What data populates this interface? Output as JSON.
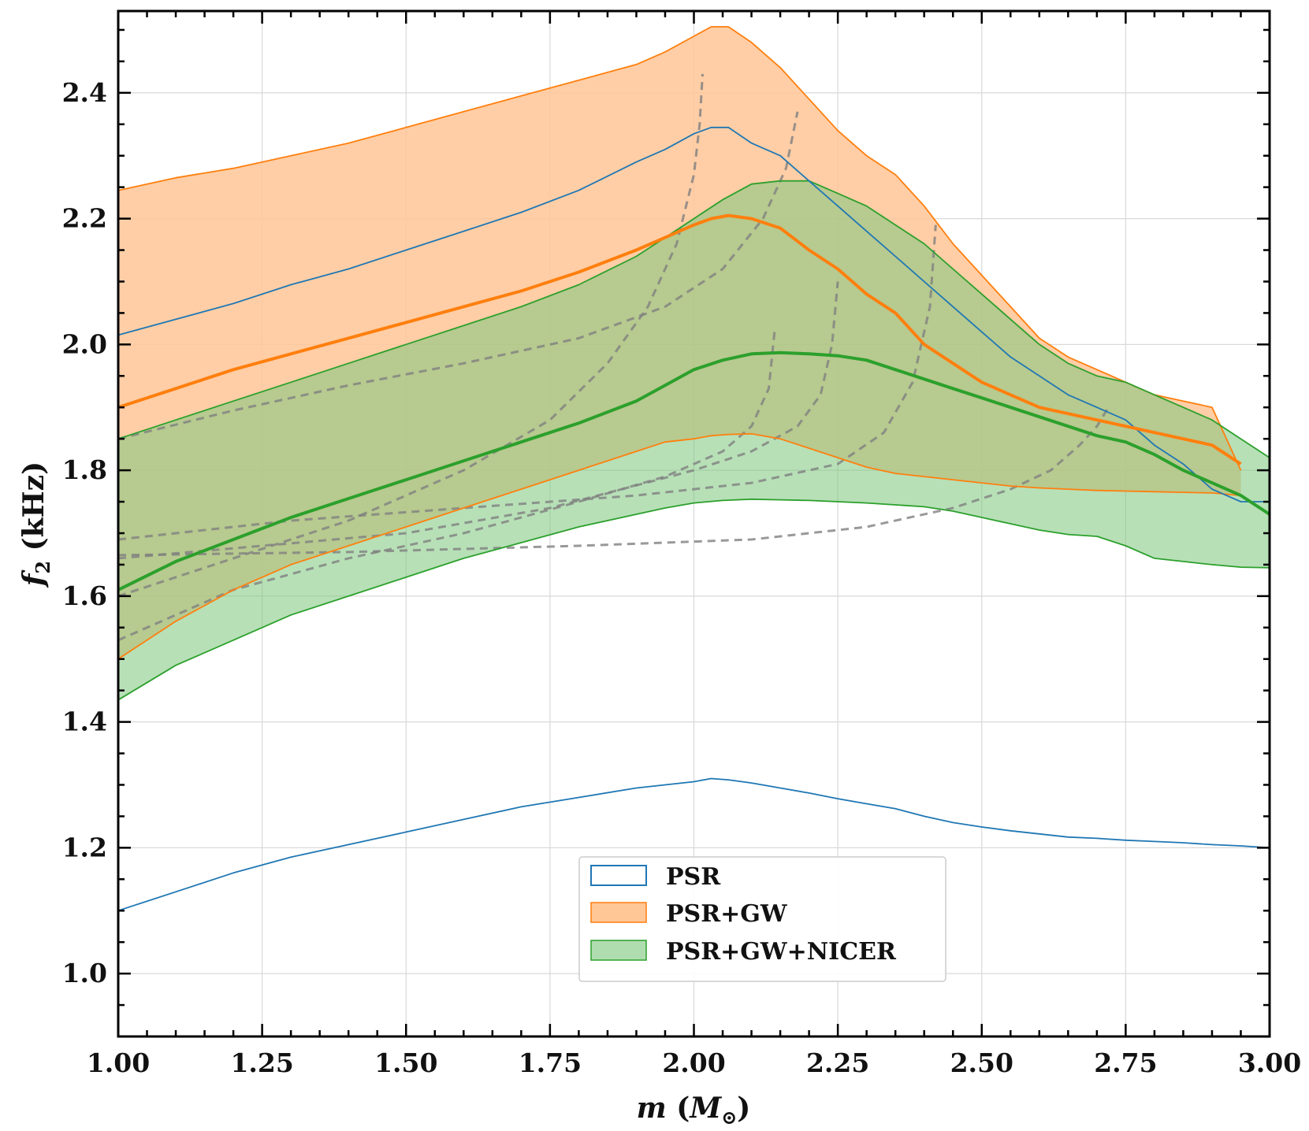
{
  "chart_data": {
    "type": "line",
    "title": "",
    "xlabel": "m (M⊙)",
    "ylabel": "f2 (kHz)",
    "xlabel_parts": {
      "var": "m",
      "open": " (",
      "unit": "M",
      "sub": "⊙",
      "close": ")"
    },
    "ylabel_parts": {
      "var": "f",
      "sub": "2",
      "rest": " (kHz)"
    },
    "xlim": [
      1.0,
      3.0
    ],
    "ylim": [
      0.9,
      2.53
    ],
    "xticks": [
      1.0,
      1.25,
      1.5,
      1.75,
      2.0,
      2.25,
      2.5,
      2.75,
      3.0
    ],
    "xtick_labels": [
      "1.00",
      "1.25",
      "1.50",
      "1.75",
      "2.00",
      "2.25",
      "2.50",
      "2.75",
      "3.00"
    ],
    "yticks": [
      1.0,
      1.2,
      1.4,
      1.6,
      1.8,
      2.0,
      2.2,
      2.4
    ],
    "ytick_labels": [
      "1.0",
      "1.2",
      "1.4",
      "1.6",
      "1.8",
      "2.0",
      "2.2",
      "2.4"
    ],
    "grid": true,
    "legend_position": "bottom-center",
    "colors": {
      "psr": "#1f77b4",
      "psr_gw": "#ff7f0e",
      "psr_gw_fill": "#ffc696",
      "psr_gw_nicer": "#2ca02c",
      "psr_gw_nicer_fill": "#7cc67c",
      "dashed": "#808080"
    },
    "legend": [
      {
        "label": "PSR",
        "style": "outline",
        "color": "#1f77b4"
      },
      {
        "label": "PSR+GW",
        "style": "fill",
        "color": "#ff7f0e"
      },
      {
        "label": "PSR+GW+NICER",
        "style": "fill",
        "color": "#2ca02c"
      }
    ],
    "series": [
      {
        "name": "PSR",
        "kind": "band_outline",
        "x": [
          1.0,
          1.1,
          1.2,
          1.3,
          1.4,
          1.5,
          1.6,
          1.7,
          1.8,
          1.9,
          1.95,
          2.0,
          2.03,
          2.06,
          2.1,
          2.15,
          2.2,
          2.25,
          2.3,
          2.35,
          2.4,
          2.45,
          2.5,
          2.55,
          2.6,
          2.65,
          2.7,
          2.75,
          2.8,
          2.85,
          2.9,
          2.95,
          3.0
        ],
        "upper": [
          2.015,
          2.04,
          2.065,
          2.095,
          2.12,
          2.15,
          2.18,
          2.21,
          2.245,
          2.29,
          2.31,
          2.335,
          2.345,
          2.345,
          2.32,
          2.3,
          2.26,
          2.22,
          2.18,
          2.14,
          2.1,
          2.06,
          2.02,
          1.98,
          1.95,
          1.92,
          1.9,
          1.88,
          1.84,
          1.81,
          1.77,
          1.75,
          1.75
        ],
        "lower": [
          1.1,
          1.13,
          1.16,
          1.185,
          1.205,
          1.225,
          1.245,
          1.265,
          1.28,
          1.295,
          1.3,
          1.305,
          1.31,
          1.308,
          1.303,
          1.295,
          1.287,
          1.278,
          1.27,
          1.262,
          1.25,
          1.24,
          1.233,
          1.227,
          1.222,
          1.217,
          1.215,
          1.212,
          1.21,
          1.208,
          1.205,
          1.203,
          1.2
        ]
      },
      {
        "name": "PSR+GW",
        "kind": "band",
        "x": [
          1.0,
          1.1,
          1.2,
          1.3,
          1.4,
          1.5,
          1.6,
          1.7,
          1.8,
          1.9,
          1.95,
          2.0,
          2.03,
          2.06,
          2.1,
          2.15,
          2.2,
          2.25,
          2.3,
          2.35,
          2.4,
          2.45,
          2.5,
          2.55,
          2.6,
          2.65,
          2.7,
          2.75,
          2.8,
          2.85,
          2.9,
          2.95
        ],
        "upper": [
          2.245,
          2.265,
          2.28,
          2.3,
          2.32,
          2.345,
          2.37,
          2.395,
          2.42,
          2.445,
          2.465,
          2.49,
          2.505,
          2.505,
          2.48,
          2.44,
          2.39,
          2.34,
          2.3,
          2.27,
          2.22,
          2.16,
          2.11,
          2.06,
          2.01,
          1.98,
          1.96,
          1.94,
          1.92,
          1.91,
          1.9,
          1.8
        ],
        "median": [
          1.9,
          1.93,
          1.96,
          1.985,
          2.01,
          2.035,
          2.06,
          2.085,
          2.115,
          2.15,
          2.17,
          2.19,
          2.2,
          2.205,
          2.2,
          2.185,
          2.15,
          2.12,
          2.08,
          2.05,
          2.0,
          1.97,
          1.94,
          1.92,
          1.9,
          1.89,
          1.88,
          1.87,
          1.86,
          1.85,
          1.84,
          1.81
        ],
        "lower": [
          1.5,
          1.56,
          1.61,
          1.65,
          1.68,
          1.71,
          1.74,
          1.77,
          1.8,
          1.83,
          1.845,
          1.85,
          1.855,
          1.857,
          1.858,
          1.85,
          1.835,
          1.82,
          1.805,
          1.795,
          1.79,
          1.785,
          1.78,
          1.775,
          1.772,
          1.77,
          1.768,
          1.767,
          1.766,
          1.765,
          1.764,
          1.76
        ]
      },
      {
        "name": "PSR+GW+NICER",
        "kind": "band",
        "x": [
          1.0,
          1.1,
          1.2,
          1.3,
          1.4,
          1.5,
          1.6,
          1.7,
          1.8,
          1.9,
          1.95,
          2.0,
          2.05,
          2.1,
          2.15,
          2.2,
          2.25,
          2.3,
          2.35,
          2.4,
          2.45,
          2.5,
          2.55,
          2.6,
          2.65,
          2.7,
          2.75,
          2.8,
          2.85,
          2.9,
          2.95,
          3.0
        ],
        "upper": [
          1.85,
          1.88,
          1.91,
          1.94,
          1.97,
          2.0,
          2.03,
          2.06,
          2.095,
          2.14,
          2.17,
          2.2,
          2.23,
          2.255,
          2.26,
          2.26,
          2.24,
          2.22,
          2.19,
          2.16,
          2.12,
          2.08,
          2.04,
          2.0,
          1.97,
          1.95,
          1.94,
          1.92,
          1.9,
          1.88,
          1.85,
          1.82
        ],
        "median": [
          1.61,
          1.655,
          1.69,
          1.725,
          1.755,
          1.785,
          1.815,
          1.845,
          1.875,
          1.91,
          1.935,
          1.96,
          1.975,
          1.985,
          1.987,
          1.985,
          1.982,
          1.975,
          1.96,
          1.945,
          1.93,
          1.915,
          1.9,
          1.885,
          1.87,
          1.855,
          1.845,
          1.825,
          1.8,
          1.78,
          1.76,
          1.73
        ],
        "lower": [
          1.435,
          1.49,
          1.53,
          1.57,
          1.6,
          1.63,
          1.66,
          1.685,
          1.71,
          1.73,
          1.74,
          1.748,
          1.752,
          1.754,
          1.753,
          1.752,
          1.75,
          1.748,
          1.745,
          1.742,
          1.735,
          1.725,
          1.715,
          1.705,
          1.698,
          1.695,
          1.68,
          1.66,
          1.655,
          1.65,
          1.646,
          1.645
        ]
      }
    ],
    "dashed_curves": [
      {
        "x": [
          1.0,
          1.2,
          1.4,
          1.6,
          1.75,
          1.85,
          1.92,
          1.97,
          2.0,
          2.01,
          2.015
        ],
        "y": [
          1.6,
          1.66,
          1.72,
          1.8,
          1.88,
          1.97,
          2.06,
          2.16,
          2.27,
          2.35,
          2.43
        ]
      },
      {
        "x": [
          1.0,
          1.2,
          1.4,
          1.6,
          1.8,
          1.95,
          2.05,
          2.12,
          2.16,
          2.18
        ],
        "y": [
          1.85,
          1.895,
          1.935,
          1.97,
          2.01,
          2.06,
          2.12,
          2.2,
          2.28,
          2.37
        ]
      },
      {
        "x": [
          1.0,
          1.2,
          1.4,
          1.6,
          1.8,
          1.95,
          2.05,
          2.1,
          2.13,
          2.14
        ],
        "y": [
          1.53,
          1.61,
          1.66,
          1.7,
          1.75,
          1.79,
          1.83,
          1.87,
          1.93,
          2.02
        ]
      },
      {
        "x": [
          1.0,
          1.25,
          1.5,
          1.75,
          2.0,
          2.1,
          2.18,
          2.22,
          2.24,
          2.25
        ],
        "y": [
          1.66,
          1.68,
          1.7,
          1.74,
          1.8,
          1.83,
          1.87,
          1.92,
          2.0,
          2.1
        ]
      },
      {
        "x": [
          1.0,
          1.3,
          1.6,
          1.9,
          2.1,
          2.25,
          2.33,
          2.38,
          2.41,
          2.42
        ],
        "y": [
          1.69,
          1.72,
          1.74,
          1.76,
          1.78,
          1.81,
          1.86,
          1.94,
          2.06,
          2.19
        ]
      },
      {
        "x": [
          1.0,
          1.4,
          1.8,
          2.1,
          2.3,
          2.45,
          2.55,
          2.62,
          2.67,
          2.7,
          2.72
        ],
        "y": [
          1.665,
          1.67,
          1.68,
          1.69,
          1.71,
          1.74,
          1.77,
          1.8,
          1.84,
          1.87,
          1.9
        ]
      }
    ]
  }
}
